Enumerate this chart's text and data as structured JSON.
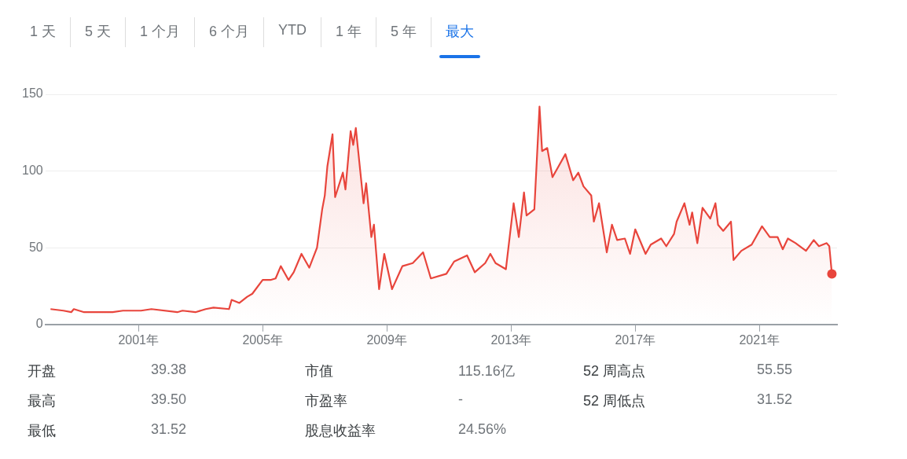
{
  "chart_data": [
    {
      "type": "other",
      "annotations": [
        "1 天",
        "5 天",
        "1 个月",
        "6 个月",
        "YTD",
        "1 年",
        "5 年",
        "最大"
      ]
    },
    {
      "type": "area",
      "grid": "y",
      "legend": false,
      "xlim": [
        "1998-01",
        "2023-07"
      ],
      "xticks": [
        {
          "value": "2001-01",
          "label": "2001年"
        },
        {
          "value": "2005-01",
          "label": "2005年"
        },
        {
          "value": "2009-01",
          "label": "2009年"
        },
        {
          "value": "2013-01",
          "label": "2013年"
        },
        {
          "value": "2017-01",
          "label": "2017年"
        },
        {
          "value": "2021-01",
          "label": "2021年"
        }
      ],
      "ylim": [
        0,
        150
      ],
      "yticks": [
        0,
        50,
        100,
        150
      ],
      "series": [
        {
          "color": "#e8453c",
          "x": [
            "1998-03",
            "1998-08",
            "1998-11",
            "1998-12",
            "1999-04",
            "2000-03",
            "2000-07",
            "2001-02",
            "2001-06",
            "2002-04",
            "2002-06",
            "2002-11",
            "2003-03",
            "2003-06",
            "2003-12",
            "2004-01",
            "2004-04",
            "2004-07",
            "2004-09",
            "2005-01",
            "2005-04",
            "2005-06",
            "2005-08",
            "2005-11",
            "2006-01",
            "2006-04",
            "2006-07",
            "2006-10",
            "2006-12",
            "2007-01",
            "2007-02",
            "2007-04",
            "2007-05",
            "2007-08",
            "2007-09",
            "2007-11",
            "2007-12",
            "2008-01",
            "2008-04",
            "2008-05",
            "2008-07",
            "2008-08",
            "2008-10",
            "2008-12",
            "2009-03",
            "2009-07",
            "2009-11",
            "2010-03",
            "2010-06",
            "2010-12",
            "2011-03",
            "2011-08",
            "2011-11",
            "2012-03",
            "2012-05",
            "2012-07",
            "2012-11",
            "2013-02",
            "2013-04",
            "2013-06",
            "2013-07",
            "2013-10",
            "2013-12",
            "2014-01",
            "2014-03",
            "2014-05",
            "2014-07",
            "2014-10",
            "2015-01",
            "2015-03",
            "2015-05",
            "2015-08",
            "2015-09",
            "2015-11",
            "2016-02",
            "2016-04",
            "2016-06",
            "2016-09",
            "2016-11",
            "2017-01",
            "2017-05",
            "2017-07",
            "2017-11",
            "2018-01",
            "2018-04",
            "2018-05",
            "2018-08",
            "2018-10",
            "2018-11",
            "2019-01",
            "2019-03",
            "2019-06",
            "2019-08",
            "2019-09",
            "2019-11",
            "2020-02",
            "2020-03",
            "2020-06",
            "2020-10",
            "2021-02",
            "2021-05",
            "2021-08",
            "2021-10",
            "2021-12",
            "2022-03",
            "2022-07",
            "2022-10",
            "2022-12",
            "2023-03",
            "2023-04",
            "2023-05"
          ],
          "values": [
            10,
            9,
            8,
            10,
            8,
            8,
            9,
            9,
            10,
            8,
            9,
            8,
            10,
            11,
            10,
            16,
            14,
            18,
            20,
            29,
            29,
            30,
            38,
            29,
            34,
            46,
            37,
            50,
            75,
            84,
            103,
            124,
            83,
            99,
            88,
            126,
            117,
            128,
            79,
            92,
            57,
            65,
            23,
            46,
            23,
            38,
            40,
            47,
            30,
            33,
            41,
            45,
            34,
            40,
            46,
            40,
            36,
            79,
            57,
            86,
            71,
            75,
            142,
            113,
            115,
            96,
            102,
            111,
            94,
            99,
            90,
            84,
            67,
            79,
            47,
            65,
            55,
            56,
            46,
            62,
            46,
            52,
            56,
            51,
            59,
            67,
            79,
            65,
            73,
            53,
            76,
            69,
            79,
            65,
            61,
            67,
            42,
            48,
            52,
            64,
            57,
            57,
            49,
            56,
            53,
            48,
            55,
            51,
            53,
            51,
            33
          ]
        }
      ]
    },
    {
      "type": "other",
      "annotations": [
        "开盘",
        "39.38",
        "市值",
        "115.16亿",
        "52 周高点",
        "55.55",
        "最高",
        "39.50",
        "市盈率",
        "-",
        "52 周低点",
        "31.52",
        "最低",
        "31.52",
        "股息收益率",
        "24.56%"
      ]
    }
  ]
}
